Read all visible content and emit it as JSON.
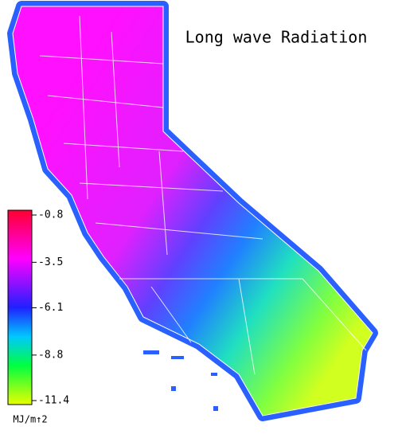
{
  "title": "Long wave Radiation",
  "colorbar": {
    "ticks": [
      -0.8,
      -3.5,
      -6.1,
      -8.8,
      -11.4
    ],
    "unit": "MJ/m↑2"
  }
}
